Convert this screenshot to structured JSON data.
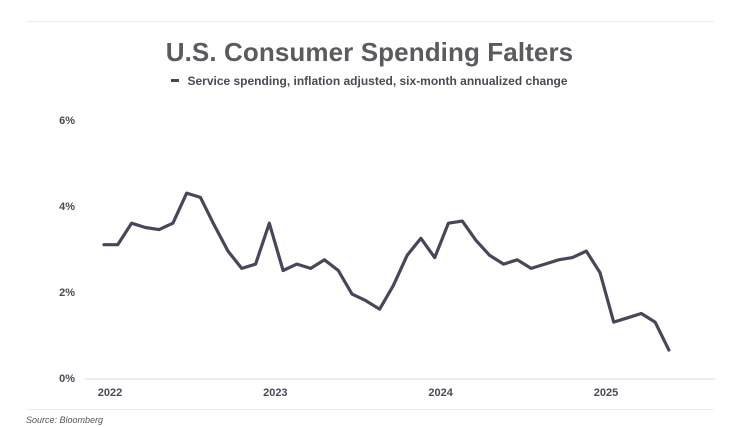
{
  "chart_data": {
    "type": "line",
    "title": "U.S. Consumer Spending Falters",
    "series": [
      {
        "name": "Service spending, inflation adjusted, six-month annualized change",
        "color": "#47475a",
        "x": [
          2022.0,
          2022.083,
          2022.167,
          2022.25,
          2022.333,
          2022.417,
          2022.5,
          2022.583,
          2022.667,
          2022.75,
          2022.833,
          2022.917,
          2023.0,
          2023.083,
          2023.167,
          2023.25,
          2023.333,
          2023.417,
          2023.5,
          2023.583,
          2023.667,
          2023.75,
          2023.833,
          2023.917,
          2024.0,
          2024.083,
          2024.167,
          2024.25,
          2024.333,
          2024.417,
          2024.5,
          2024.583,
          2024.667,
          2024.75,
          2024.833,
          2024.917,
          2025.0,
          2025.083,
          2025.167,
          2025.25,
          2025.333,
          2025.417
        ],
        "values": [
          3.1,
          3.1,
          3.6,
          3.5,
          3.45,
          3.6,
          4.3,
          4.2,
          3.55,
          2.95,
          2.55,
          2.65,
          3.6,
          2.5,
          2.65,
          2.55,
          2.75,
          2.5,
          1.95,
          1.8,
          1.6,
          2.15,
          2.85,
          3.25,
          2.8,
          3.6,
          3.65,
          3.2,
          2.85,
          2.65,
          2.75,
          2.55,
          2.65,
          2.75,
          2.8,
          2.95,
          2.45,
          1.3,
          1.4,
          1.5,
          1.3,
          0.65
        ]
      }
    ],
    "yticks": [
      "0%",
      "2%",
      "4%",
      "6%"
    ],
    "ytick_values": [
      0,
      2,
      4,
      6
    ],
    "xticks": [
      "2022",
      "2023",
      "2024",
      "2025"
    ],
    "xtick_values": [
      2022,
      2023,
      2024,
      2025
    ],
    "xlim": [
      2021.92,
      2025.7
    ],
    "ylim": [
      0,
      6
    ],
    "xlabel": "",
    "ylabel": "",
    "legend_label": "Service spending, inflation adjusted, six-month annualized change",
    "source": "Source: Bloomberg"
  }
}
